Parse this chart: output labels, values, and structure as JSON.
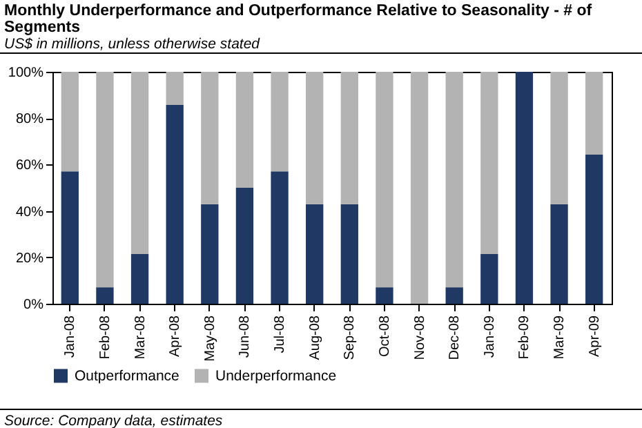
{
  "chart_data": {
    "type": "bar",
    "title": "Monthly Underperformance and Outperformance Relative to Seasonality - # of Segments",
    "subtitle": "US$ in millions, unless otherwise stated",
    "categories": [
      "Jan-08",
      "Feb-08",
      "Mar-08",
      "Apr-08",
      "May-08",
      "Jun-08",
      "Jul-08",
      "Aug-08",
      "Sep-08",
      "Oct-08",
      "Nov-08",
      "Dec-08",
      "Jan-09",
      "Feb-09",
      "Mar-09",
      "Apr-09"
    ],
    "series": [
      {
        "name": "Outperformance",
        "color": "#1f3864",
        "values": [
          57.1,
          7.1,
          21.4,
          85.7,
          42.9,
          50,
          57.1,
          42.9,
          42.9,
          7.1,
          0,
          7.1,
          21.4,
          100,
          42.9,
          64.3
        ]
      },
      {
        "name": "Underperformance",
        "color": "#b3b3b3",
        "values": [
          42.9,
          92.9,
          78.6,
          14.3,
          57.1,
          50,
          42.9,
          57.1,
          57.1,
          92.9,
          100,
          92.9,
          78.6,
          0,
          57.1,
          35.7
        ]
      }
    ],
    "stacked": true,
    "ylim": [
      0,
      100
    ],
    "yticks": [
      {
        "value": 0,
        "label": "0%"
      },
      {
        "value": 20,
        "label": "20%"
      },
      {
        "value": 40,
        "label": "40%"
      },
      {
        "value": 60,
        "label": "60%"
      },
      {
        "value": 80,
        "label": "80%"
      },
      {
        "value": 100,
        "label": "100%"
      }
    ],
    "legend": "bottom",
    "annotations": [
      "Source: Company data, estimates"
    ]
  }
}
